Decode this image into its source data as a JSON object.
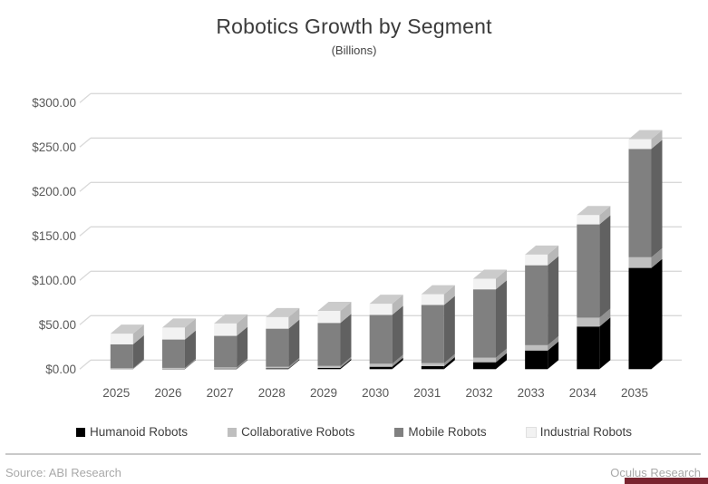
{
  "chart_data": {
    "type": "bar",
    "stacked": true,
    "effect_3d": true,
    "title": "Robotics Growth by Segment",
    "subtitle": "(Billions)",
    "categories": [
      "2025",
      "2026",
      "2027",
      "2028",
      "2029",
      "2030",
      "2031",
      "2032",
      "2033",
      "2034",
      "2035"
    ],
    "series": [
      {
        "name": "Humanoid Robots",
        "color": "#000000",
        "values": [
          0.2,
          0.4,
          0.6,
          0.8,
          1.4,
          2.7,
          3.4,
          7.8,
          21,
          48,
          114
        ]
      },
      {
        "name": "Collaborative Robots",
        "color": "#bfbfbf",
        "values": [
          0.8,
          1.0,
          1.4,
          1.8,
          2.2,
          3.4,
          3.4,
          5.1,
          6,
          10,
          12
        ]
      },
      {
        "name": "Mobile Robots",
        "color": "#808080",
        "values": [
          27,
          32,
          35.5,
          43,
          48.5,
          55,
          65.5,
          77,
          90,
          105,
          122
        ]
      },
      {
        "name": "Industrial Robots",
        "color": "#f2f2f2",
        "values": [
          12,
          13.5,
          14,
          13,
          13.5,
          12.5,
          12,
          12,
          12,
          10.5,
          11
        ]
      }
    ],
    "ylabel": "",
    "xlabel": "",
    "ylim": [
      0,
      300
    ],
    "yticks": [
      {
        "value": 0,
        "label": "$0.00"
      },
      {
        "value": 50,
        "label": "$50.00"
      },
      {
        "value": 100,
        "label": "$100.00"
      },
      {
        "value": 150,
        "label": "$150.00"
      },
      {
        "value": 200,
        "label": "$200.00"
      },
      {
        "value": 250,
        "label": "$250.00"
      },
      {
        "value": 300,
        "label": "$300.00"
      }
    ],
    "grid": true,
    "legend_position": "bottom",
    "gridline_color": "#d9d9d9",
    "axis_text_color": "#595959"
  },
  "footer": {
    "source": "Source: ABI Research",
    "brand": "Oculus Research",
    "accent_color": "#7a2430"
  }
}
